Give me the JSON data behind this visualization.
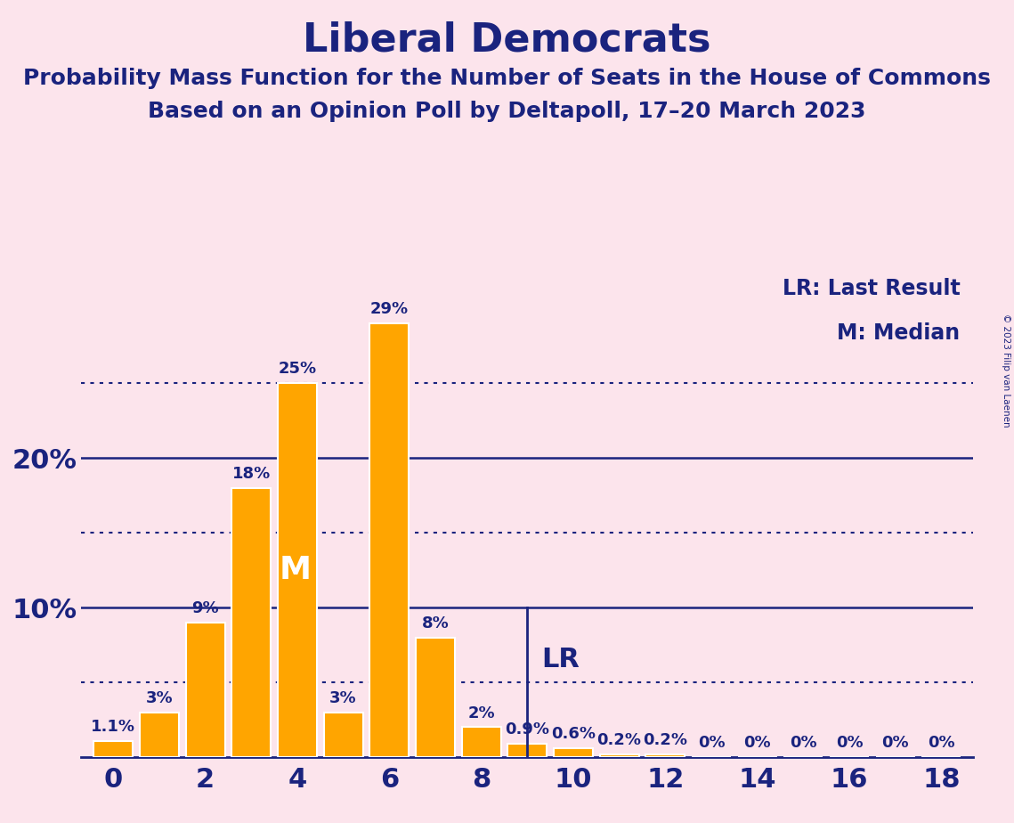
{
  "title": "Liberal Democrats",
  "subtitle1": "Probability Mass Function for the Number of Seats in the House of Commons",
  "subtitle2": "Based on an Opinion Poll by Deltapoll, 17–20 March 2023",
  "background_color": "#fce4ec",
  "bar_color": "#FFA500",
  "text_color": "#1a237e",
  "bar_edge_color": "#ffffff",
  "categories": [
    0,
    1,
    2,
    3,
    4,
    5,
    6,
    7,
    8,
    9,
    10,
    11,
    12,
    13,
    14,
    15,
    16,
    17,
    18
  ],
  "values": [
    1.1,
    3.0,
    9.0,
    18.0,
    25.0,
    3.0,
    29.0,
    8.0,
    2.0,
    0.9,
    0.6,
    0.2,
    0.2,
    0.0,
    0.0,
    0.0,
    0.0,
    0.0,
    0.0
  ],
  "bar_labels": [
    "1.1%",
    "3%",
    "9%",
    "18%",
    "25%",
    "3%",
    "29%",
    "8%",
    "2%",
    "0.9%",
    "0.6%",
    "0.2%",
    "0.2%",
    "0%",
    "0%",
    "0%",
    "0%",
    "0%",
    "0%"
  ],
  "xlim": [
    -0.7,
    18.7
  ],
  "ylim": [
    0,
    33
  ],
  "solid_ylines": [
    10,
    20
  ],
  "dotted_ylines": [
    5,
    15,
    25
  ],
  "xtick_labels": [
    "0",
    "2",
    "4",
    "6",
    "8",
    "10",
    "12",
    "14",
    "16",
    "18"
  ],
  "xtick_positions": [
    0,
    2,
    4,
    6,
    8,
    10,
    12,
    14,
    16,
    18
  ],
  "median_bar": 4,
  "lr_x": 9,
  "legend_lr": "LR: Last Result",
  "legend_m": "M: Median",
  "copyright": "© 2023 Filip van Laenen",
  "title_fontsize": 32,
  "subtitle_fontsize": 18,
  "bar_label_fontsize": 13,
  "axis_label_fontsize": 22,
  "legend_fontsize": 17,
  "lr_label_fontsize": 22
}
